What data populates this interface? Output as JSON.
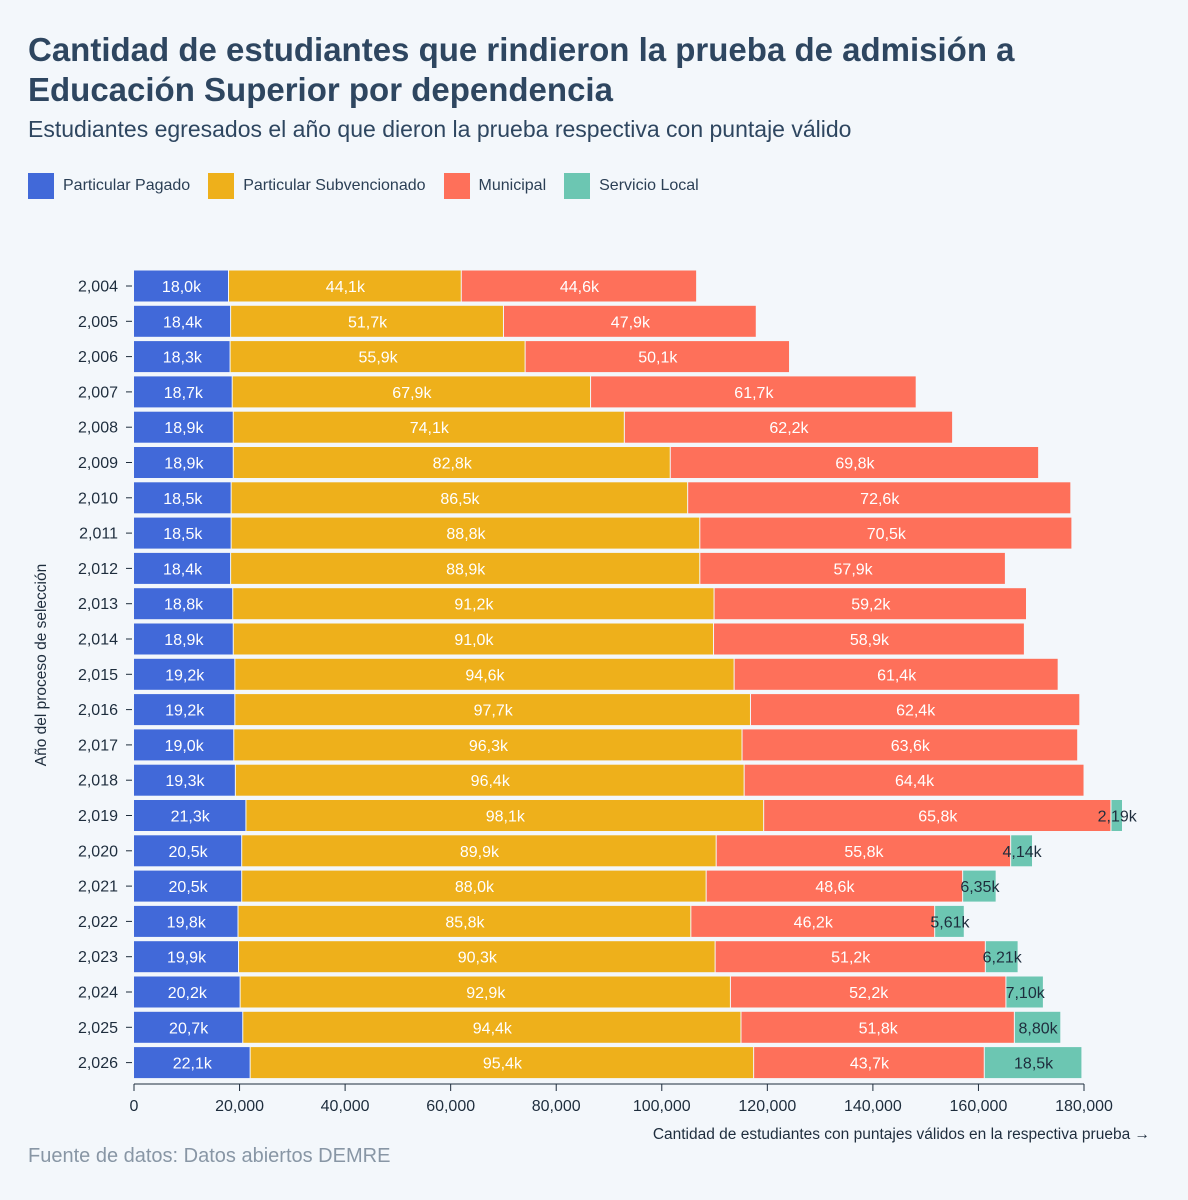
{
  "title": "Cantidad de estudiantes que rindieron la prueba de admisión a Educación Superior por dependencia",
  "subtitle": "Estudiantes egresados el año que dieron la prueba respectiva con puntaje válido",
  "source": "Fuente de datos: Datos abiertos DEMRE",
  "colors": {
    "particular_pagado": "#4169d9",
    "particular_subvencionado": "#eeb01b",
    "municipal": "#fe705a",
    "servicio_local": "#6cc6b2"
  },
  "chart_data": {
    "type": "bar",
    "orientation": "horizontal",
    "stacked": true,
    "title": "Cantidad de estudiantes que rindieron la prueba de admisión a Educación Superior por dependencia",
    "xlabel": "Cantidad de estudiantes con puntajes válidos en la respectiva prueba →",
    "ylabel": "Año del proceso de selección",
    "xlim": [
      0,
      180000
    ],
    "xticks": [
      0,
      20000,
      40000,
      60000,
      80000,
      100000,
      120000,
      140000,
      160000,
      180000
    ],
    "xtick_labels": [
      "0",
      "20,000",
      "40,000",
      "60,000",
      "80,000",
      "100,000",
      "120,000",
      "140,000",
      "160,000",
      "180,000"
    ],
    "legend_position": "top-left",
    "categories": [
      "2,004",
      "2,005",
      "2,006",
      "2,007",
      "2,008",
      "2,009",
      "2,010",
      "2,011",
      "2,012",
      "2,013",
      "2,014",
      "2,015",
      "2,016",
      "2,017",
      "2,018",
      "2,019",
      "2,020",
      "2,021",
      "2,022",
      "2,023",
      "2,024",
      "2,025",
      "2,026"
    ],
    "series": [
      {
        "name": "Particular Pagado",
        "color": "#4169d9",
        "values": [
          18000,
          18400,
          18300,
          18700,
          18900,
          18900,
          18500,
          18500,
          18400,
          18800,
          18900,
          19200,
          19200,
          19000,
          19300,
          21300,
          20500,
          20500,
          19800,
          19900,
          20200,
          20700,
          22100
        ],
        "labels": [
          "18,0k",
          "18,4k",
          "18,3k",
          "18,7k",
          "18,9k",
          "18,9k",
          "18,5k",
          "18,5k",
          "18,4k",
          "18,8k",
          "18,9k",
          "19,2k",
          "19,2k",
          "19,0k",
          "19,3k",
          "21,3k",
          "20,5k",
          "20,5k",
          "19,8k",
          "19,9k",
          "20,2k",
          "20,7k",
          "22,1k"
        ]
      },
      {
        "name": "Particular Subvencionado",
        "color": "#eeb01b",
        "values": [
          44100,
          51700,
          55900,
          67900,
          74100,
          82800,
          86500,
          88800,
          88900,
          91200,
          91000,
          94600,
          97700,
          96300,
          96400,
          98100,
          89900,
          88000,
          85800,
          90300,
          92900,
          94400,
          95400
        ],
        "labels": [
          "44,1k",
          "51,7k",
          "55,9k",
          "67,9k",
          "74,1k",
          "82,8k",
          "86,5k",
          "88,8k",
          "88,9k",
          "91,2k",
          "91,0k",
          "94,6k",
          "97,7k",
          "96,3k",
          "96,4k",
          "98,1k",
          "89,9k",
          "88,0k",
          "85,8k",
          "90,3k",
          "92,9k",
          "94,4k",
          "95,4k"
        ]
      },
      {
        "name": "Municipal",
        "color": "#fe705a",
        "values": [
          44600,
          47900,
          50100,
          61700,
          62200,
          69800,
          72600,
          70500,
          57900,
          59200,
          58900,
          61400,
          62400,
          63600,
          64400,
          65800,
          55800,
          48600,
          46200,
          51200,
          52200,
          51800,
          43700
        ],
        "labels": [
          "44,6k",
          "47,9k",
          "50,1k",
          "61,7k",
          "62,2k",
          "69,8k",
          "72,6k",
          "70,5k",
          "57,9k",
          "59,2k",
          "58,9k",
          "61,4k",
          "62,4k",
          "63,6k",
          "64,4k",
          "65,8k",
          "55,8k",
          "48,6k",
          "46,2k",
          "51,2k",
          "52,2k",
          "51,8k",
          "43,7k"
        ]
      },
      {
        "name": "Servicio Local",
        "color": "#6cc6b2",
        "values": [
          0,
          0,
          0,
          0,
          0,
          0,
          0,
          0,
          0,
          0,
          0,
          0,
          0,
          0,
          0,
          2190,
          4140,
          6350,
          5610,
          6210,
          7100,
          8800,
          18500
        ],
        "labels": [
          "",
          "",
          "",
          "",
          "",
          "",
          "",
          "",
          "",
          "",
          "",
          "",
          "",
          "",
          "",
          "2,19k",
          "4,14k",
          "6,35k",
          "5,61k",
          "6,21k",
          "7,10k",
          "8,80k",
          "18,5k"
        ]
      }
    ]
  }
}
